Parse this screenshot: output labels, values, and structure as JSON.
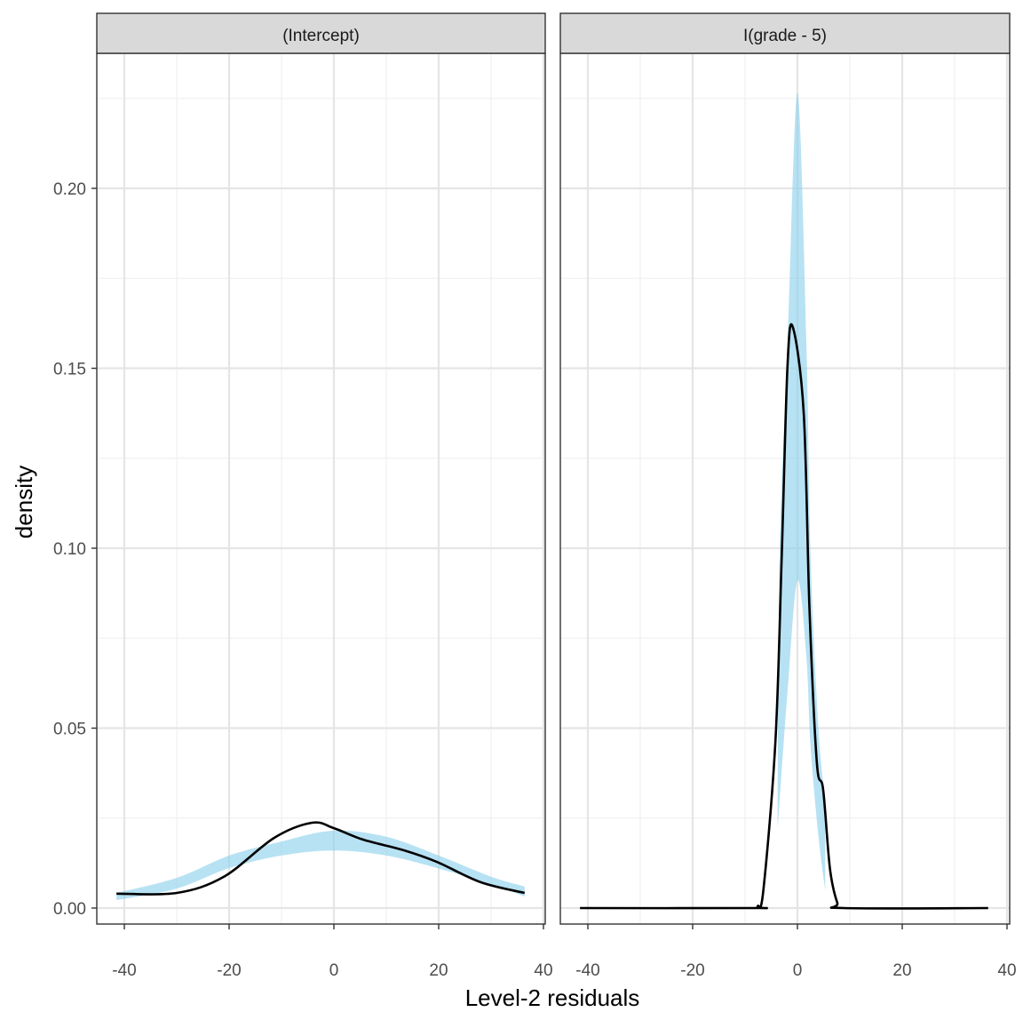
{
  "chart_data": {
    "type": "area",
    "xlabel": "Level-2 residuals",
    "ylabel": "density",
    "xlim": [
      -45,
      40
    ],
    "ylim": [
      -0.0044,
      0.2375
    ],
    "x_ticks": [
      -40,
      -20,
      0,
      20,
      40
    ],
    "y_ticks": [
      0.0,
      0.05,
      0.1,
      0.15,
      0.2
    ],
    "x_tick_labels": [
      "-40",
      "-20",
      "0",
      "20",
      "40"
    ],
    "y_tick_labels": [
      "0.00",
      "0.05",
      "0.10",
      "0.15",
      "0.20"
    ],
    "grid": true,
    "colors": {
      "band": "#87ceeb",
      "line": "#000000",
      "strip": "#d9d9d9"
    },
    "panels": [
      {
        "title": "(Intercept)",
        "band": {
          "x": [
            -41.5,
            -30,
            -20,
            -10,
            0,
            10,
            20,
            30,
            36.4
          ],
          "lower": [
            0.0022,
            0.0054,
            0.0111,
            0.0146,
            0.016,
            0.0146,
            0.011,
            0.0066,
            0.0032
          ],
          "upper": [
            0.0042,
            0.0084,
            0.0146,
            0.0185,
            0.0215,
            0.0198,
            0.0146,
            0.0087,
            0.006
          ]
        },
        "line": {
          "x": [
            -41.5,
            -30,
            -21,
            -11.4,
            -4.2,
            0,
            5.6,
            13.5,
            19.7,
            28,
            36.4
          ],
          "y": [
            0.004,
            0.0042,
            0.0087,
            0.0195,
            0.0237,
            0.0222,
            0.019,
            0.016,
            0.0128,
            0.0072,
            0.0042
          ]
        }
      },
      {
        "title": "I(grade - 5)",
        "band": {
          "x": [
            -3.8,
            -3.4,
            -1.9,
            0,
            1.7,
            2.5,
            4,
            5.3
          ],
          "lower": [
            0.022,
            0.03,
            0.06,
            0.091,
            0.07,
            0.045,
            0.02,
            0.005
          ],
          "upper": [
            0.025,
            0.098,
            0.157,
            0.2265,
            0.157,
            0.098,
            0.05,
            0.03
          ]
        },
        "line": {
          "x": [
            -41.5,
            -8.5,
            -7.6,
            -6.5,
            -4.2,
            -3,
            -1.9,
            -0.9,
            1.2,
            2.3,
            3.7,
            4.9,
            6.2,
            7.6,
            8.8,
            36.4
          ],
          "y": [
            0,
            0,
            0.0005,
            0.005,
            0.0464,
            0.0978,
            0.1506,
            0.1615,
            0.1375,
            0.083,
            0.0405,
            0.033,
            0.011,
            0.0015,
            0,
            0
          ]
        }
      }
    ]
  }
}
